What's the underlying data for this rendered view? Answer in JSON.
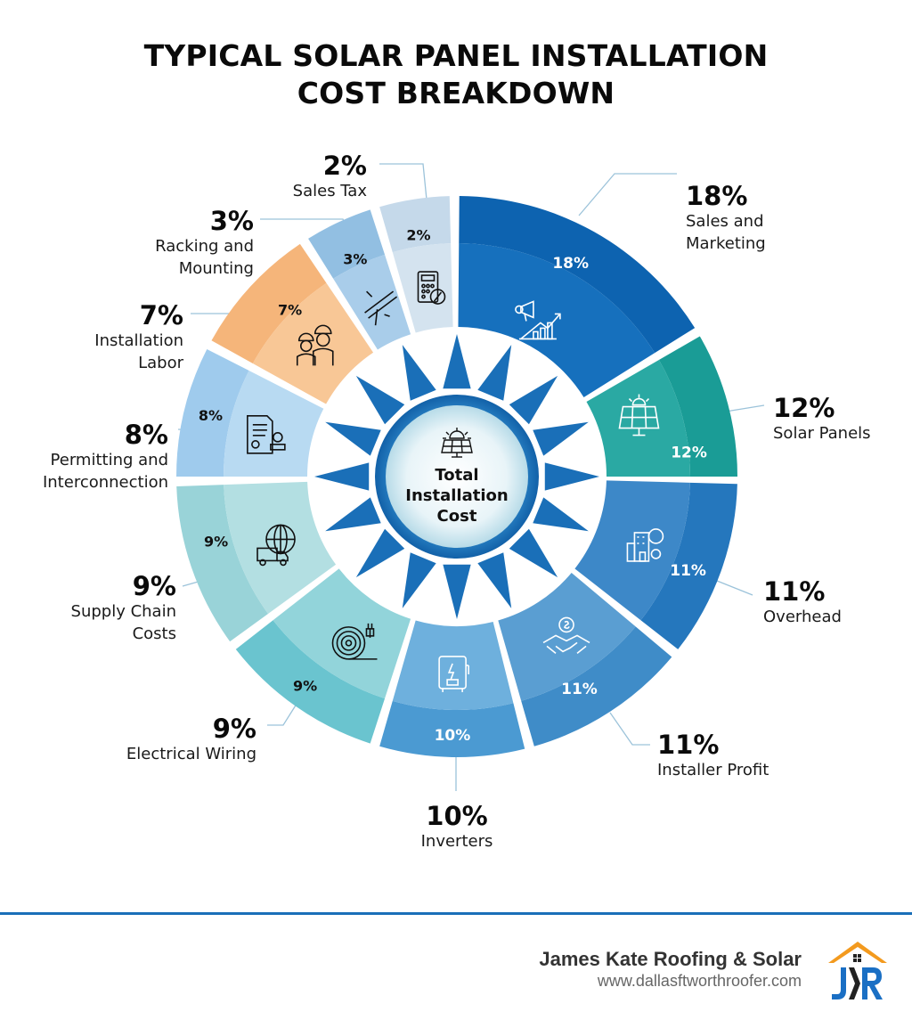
{
  "title": "TYPICAL SOLAR PANEL INSTALLATION\nCOST BREAKDOWN",
  "center": {
    "label": "Total\nInstallation\nCost",
    "icon": "solar-panel-icon"
  },
  "colors": {
    "footer_line": "#1a6fb8",
    "sun_rays": "#1a6fb8",
    "hub_ring": "#1f78c1",
    "logo_roof": "#f39a1e",
    "logo_blue": "#1a6fc4",
    "logo_dark": "#222222"
  },
  "segments": [
    {
      "key": "sales_marketing",
      "pct": "18%",
      "label": "Sales and\nMarketing",
      "icon": "megaphone-growth-icon",
      "color": "#0d63b0",
      "inner_color": "#1670bd",
      "text_color": "#ffffff",
      "a0": 0.5,
      "a1": 58
    },
    {
      "key": "solar_panels",
      "pct": "12%",
      "label": "Solar Panels",
      "icon": "solar-panel-icon",
      "color": "#1a9c96",
      "inner_color": "#2aa9a3",
      "text_color": "#ffffff",
      "a0": 60,
      "a1": 90
    },
    {
      "key": "overhead",
      "pct": "11%",
      "label": "Overhead",
      "icon": "building-gears-icon",
      "color": "#2577bd",
      "inner_color": "#3d88c8",
      "text_color": "#ffffff",
      "a0": 91.5,
      "a1": 128
    },
    {
      "key": "installer_profit",
      "pct": "11%",
      "label": "Installer Profit",
      "icon": "handshake-dollar-icon",
      "color": "#3f8cc8",
      "inner_color": "#5a9ed2",
      "text_color": "#ffffff",
      "a0": 130,
      "a1": 164
    },
    {
      "key": "inverters",
      "pct": "10%",
      "label": "Inverters",
      "icon": "inverter-box-icon",
      "color": "#4b9ad2",
      "inner_color": "#6eb0dd",
      "text_color": "#ffffff",
      "a0": 166,
      "a1": 196
    },
    {
      "key": "electrical_wiring",
      "pct": "9%",
      "label": "Electrical Wiring",
      "icon": "cable-plug-icon",
      "color": "#6ac4cf",
      "inner_color": "#92d4da",
      "text_color": "#111111",
      "a0": 198,
      "a1": 232
    },
    {
      "key": "supply_chain",
      "pct": "9%",
      "label": "Supply Chain\nCosts",
      "icon": "globe-truck-icon",
      "color": "#99d3d8",
      "inner_color": "#b3dfe2",
      "text_color": "#111111",
      "a0": 234,
      "a1": 268
    },
    {
      "key": "permitting",
      "pct": "8%",
      "label": "Permitting and\nInterconnection",
      "icon": "document-stamp-icon",
      "color": "#9fcbed",
      "inner_color": "#b8daf2",
      "text_color": "#111111",
      "a0": 270,
      "a1": 297
    },
    {
      "key": "installation_labor",
      "pct": "7%",
      "label": "Installation\nLabor",
      "icon": "workers-hardhat-icon",
      "color": "#f5b57a",
      "inner_color": "#f8c796",
      "text_color": "#111111",
      "a0": 299,
      "a1": 326
    },
    {
      "key": "racking_mounting",
      "pct": "3%",
      "label": "Racking and\nMounting",
      "icon": "mounting-rail-icon",
      "color": "#92bfe2",
      "inner_color": "#a9cdea",
      "text_color": "#111111",
      "a0": 328,
      "a1": 342
    },
    {
      "key": "sales_tax",
      "pct": "2%",
      "label": "Sales Tax",
      "icon": "calculator-percent-icon",
      "color": "#c5d9ea",
      "inner_color": "#d4e3ef",
      "text_color": "#111111",
      "a0": 344,
      "a1": 358.5
    }
  ],
  "footer": {
    "company": "James Kate Roofing & Solar",
    "url": "www.dallasftworthroofer.com",
    "logo_text": "JKR"
  },
  "chart_data": {
    "type": "pie",
    "subtype": "donut",
    "title": "Typical Solar Panel Installation Cost Breakdown",
    "center_label": "Total Installation Cost",
    "categories": [
      "Sales and Marketing",
      "Solar Panels",
      "Overhead",
      "Installer Profit",
      "Inverters",
      "Electrical Wiring",
      "Supply Chain Costs",
      "Permitting and Interconnection",
      "Installation Labor",
      "Racking and Mounting",
      "Sales Tax"
    ],
    "values": [
      18,
      12,
      11,
      11,
      10,
      9,
      9,
      8,
      7,
      3,
      2
    ],
    "unit": "%",
    "legend": "callouts around ring"
  }
}
